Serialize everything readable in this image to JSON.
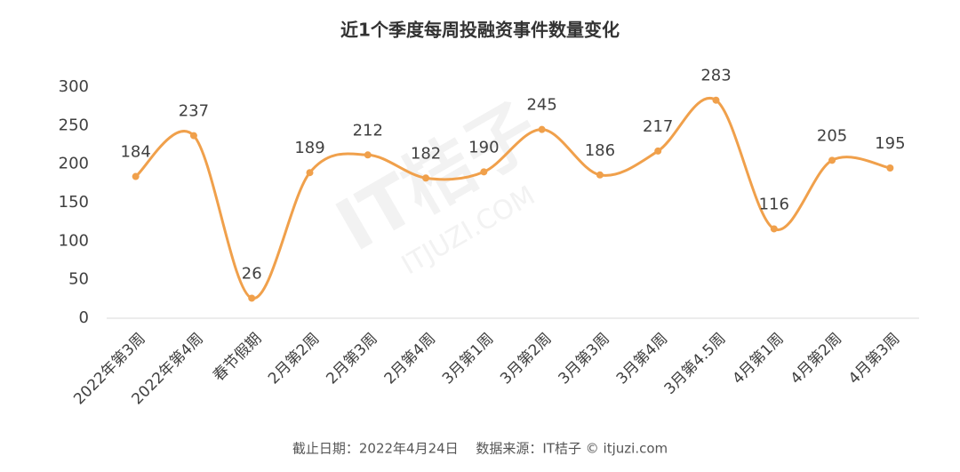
{
  "chart_data": {
    "type": "line",
    "title": "近1个季度每周投融资事件数量变化",
    "categories": [
      "2022年第3周",
      "2022年第4周",
      "春节假期",
      "2月第2周",
      "2月第3周",
      "2月第4周",
      "3月第1周",
      "3月第2周",
      "3月第3周",
      "3月第4周",
      "3月第4.5周",
      "4月第1周",
      "4月第2周",
      "4月第3周"
    ],
    "values": [
      184,
      237,
      26,
      189,
      212,
      182,
      190,
      245,
      186,
      217,
      283,
      116,
      205,
      195
    ],
    "color": "#f0a04b",
    "ylim": [
      0,
      300
    ],
    "yticks": [
      0,
      50,
      100,
      150,
      200,
      250,
      300
    ],
    "grid": false,
    "watermark": [
      "IT桔子",
      "ITJUZI.COM"
    ],
    "source": "截止日期：2022年4月24日　 数据来源：IT桔子 © itjuzi.com"
  }
}
